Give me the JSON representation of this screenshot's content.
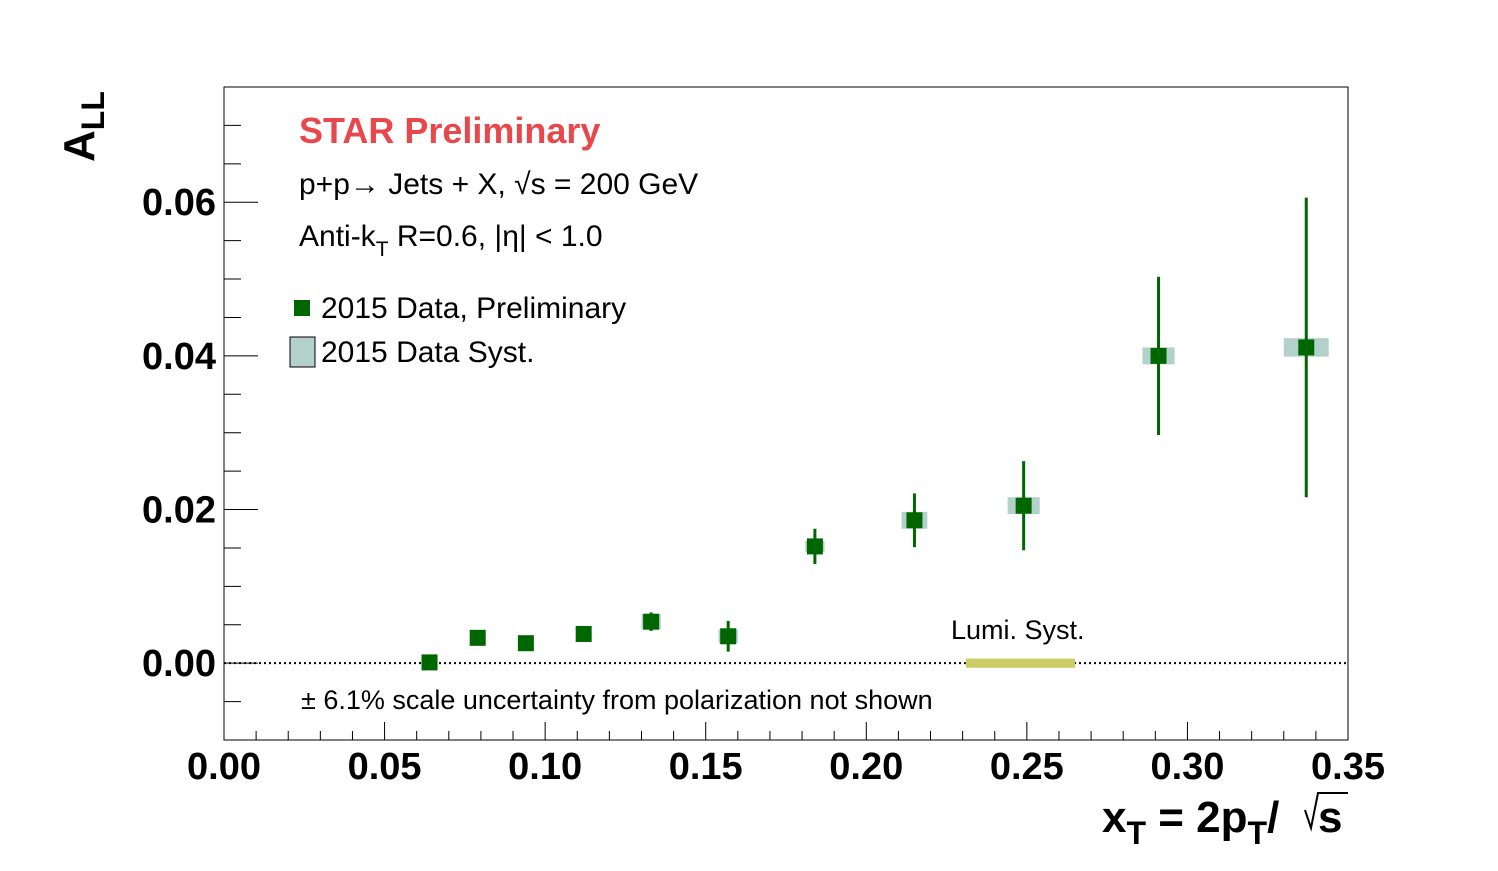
{
  "chart_data": {
    "type": "scatter",
    "xlabel": "x_T = 2p_T/√s",
    "ylabel": "A_LL",
    "xlim": [
      0.0,
      0.35
    ],
    "ylim": [
      -0.01,
      0.075
    ],
    "x_ticks": [
      "0.00",
      "0.05",
      "0.10",
      "0.15",
      "0.20",
      "0.25",
      "0.30",
      "0.35"
    ],
    "y_ticks": [
      "0.00",
      "0.02",
      "0.04",
      "0.06"
    ],
    "x_tick_values": [
      0.0,
      0.05,
      0.1,
      0.15,
      0.2,
      0.25,
      0.3,
      0.35
    ],
    "y_tick_values": [
      0.0,
      0.02,
      0.04,
      0.06
    ],
    "grid": false,
    "legend_position": "top-left",
    "colors": {
      "data": "#006600",
      "syst": "#b2d1cb",
      "lumi": "#cccc66",
      "star": "#e8484b"
    },
    "series": [
      {
        "name": "2015 Data, Preliminary",
        "x": [
          0.064,
          0.079,
          0.094,
          0.112,
          0.133,
          0.157,
          0.184,
          0.215,
          0.249,
          0.291,
          0.337
        ],
        "y": [
          0.0001,
          0.0033,
          0.0026,
          0.0038,
          0.0054,
          0.0035,
          0.0152,
          0.0186,
          0.0205,
          0.04,
          0.0411
        ],
        "y_err": [
          0.0005,
          0.0007,
          0.0007,
          0.0008,
          0.0012,
          0.002,
          0.0023,
          0.0035,
          0.0058,
          0.0103,
          0.0195
        ],
        "syst_x": [
          0.002,
          0.002,
          0.002,
          0.002,
          0.003,
          0.003,
          0.003,
          0.004,
          0.005,
          0.005,
          0.007
        ],
        "syst_y": [
          0.0005,
          0.0009,
          0.0008,
          0.0008,
          0.001,
          0.0009,
          0.0007,
          0.0011,
          0.0011,
          0.0011,
          0.0012
        ]
      }
    ],
    "lumi_band": {
      "x": [
        0.231,
        0.265
      ],
      "y_half": 0.0006
    },
    "labels": {
      "star": "STAR Preliminary",
      "process": "p+p→ Jets + X,  √s = 200 GeV",
      "jets_pre": "Anti-k",
      "jets_sub": "T",
      "jets_post": " R=0.6, |η| < 1.0",
      "legend_data": "2015 Data, Preliminary",
      "legend_syst": "2015 Data Syst.",
      "lumi": "Lumi. Syst.",
      "scale_note": "± 6.1% scale uncertainty from polarization not shown"
    }
  }
}
